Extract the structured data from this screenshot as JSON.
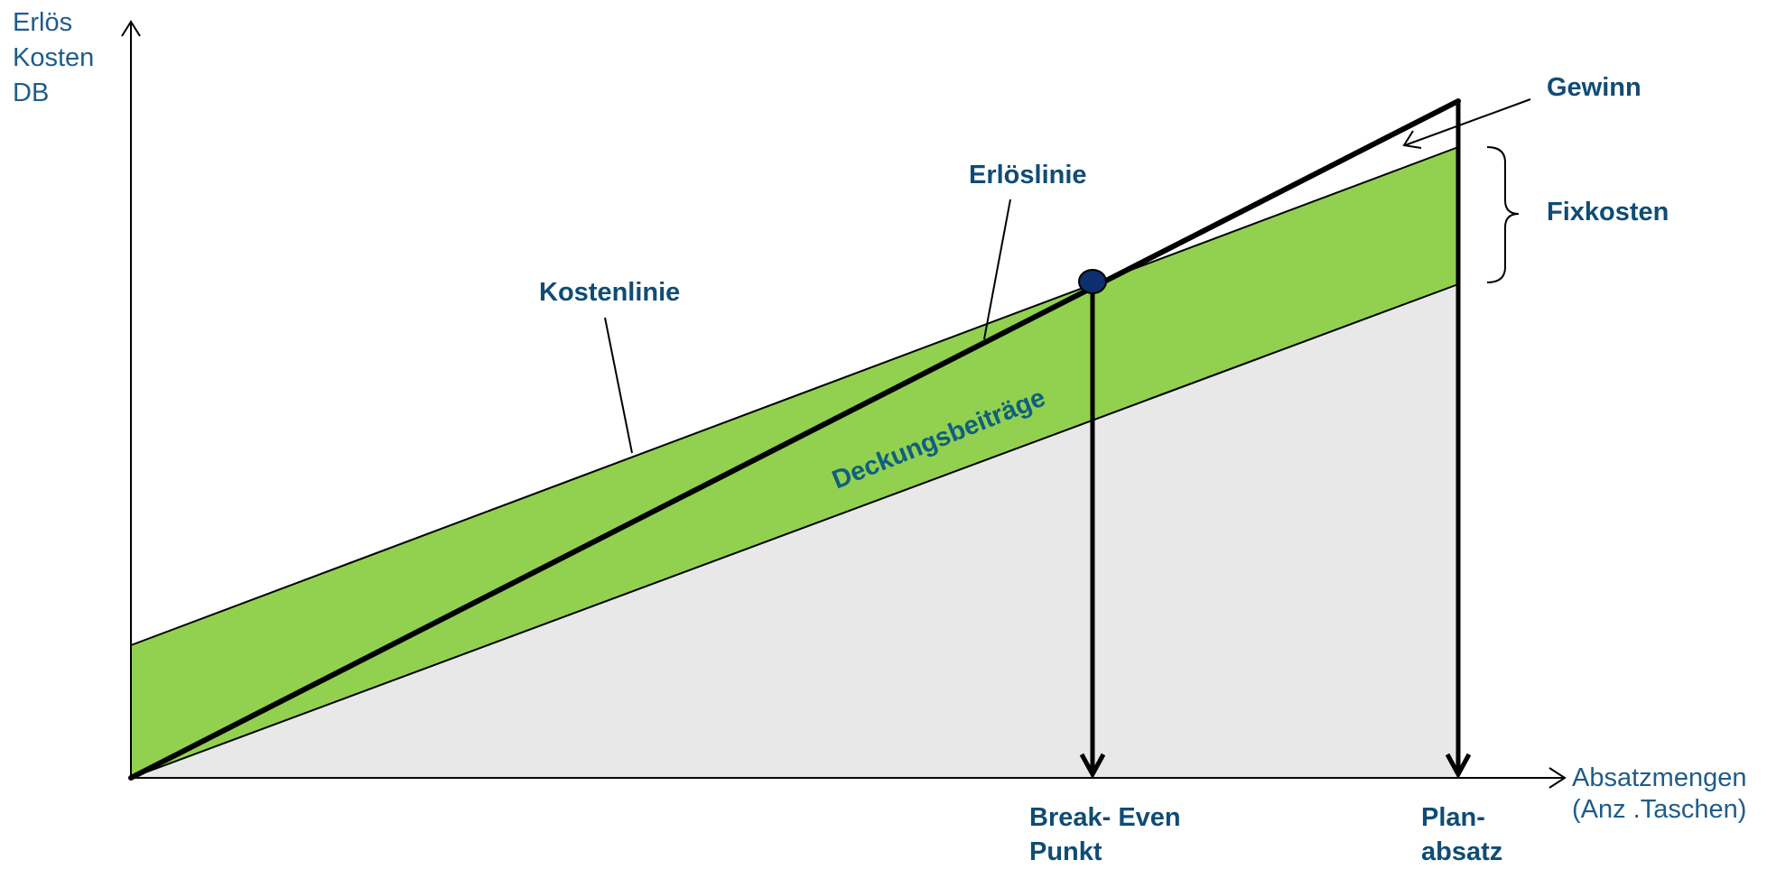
{
  "y_axis_label": [
    "Erlös",
    "Kosten",
    "DB"
  ],
  "x_axis_label": [
    "Absatzmengen",
    "(Anz .Taschen)"
  ],
  "labels": {
    "gewinn": "Gewinn",
    "fixkosten": "Fixkosten",
    "erloeslinie": "Erlöslinie",
    "kostenlinie": "Kostenlinie",
    "deckungsbeitraege": "Deckungsbeiträge",
    "break_even": [
      "Break- Even",
      "Punkt"
    ],
    "planabsatz": [
      "Plan-",
      "absatz"
    ]
  },
  "colors": {
    "contribution_area": "#92d050",
    "variable_cost_area": "#e8e8e8",
    "text_blue": "#0f4c75",
    "axis_label_blue": "#1e5c8a",
    "break_even_point": "#0d2f6e",
    "line": "#000000"
  }
}
